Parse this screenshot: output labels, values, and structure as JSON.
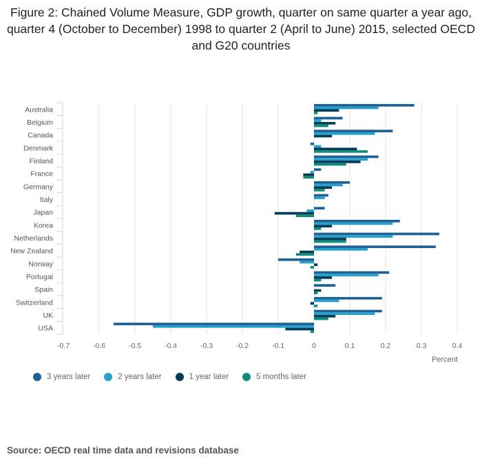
{
  "chart_data": {
    "type": "bar",
    "orientation": "horizontal",
    "title": "Figure 2: Chained Volume Measure, GDP growth, quarter on same quarter a year ago, quarter 4 (October to December) 1998 to quarter 2 (April to June) 2015, selected OECD and G20 countries",
    "xlabel": "Percent",
    "ylabel": "",
    "xlim": [
      -0.7,
      0.4
    ],
    "xticks": [
      -0.7,
      -0.6,
      -0.5,
      -0.4,
      -0.3,
      -0.2,
      -0.1,
      0,
      0.1,
      0.2,
      0.3,
      0.4
    ],
    "xtick_labels": [
      "-0.7",
      "-0.6",
      "-0.5",
      "-0.4",
      "-0.3",
      "-0.2",
      "-0.1",
      "0",
      "0.1",
      "0.2",
      "0.3",
      "0.4"
    ],
    "grid": true,
    "legend_position": "bottom-left",
    "categories": [
      "Australia",
      "Belgium",
      "Canada",
      "Denmark",
      "Finland",
      "France",
      "Germany",
      "Italy",
      "Japan",
      "Korea",
      "Netherlands",
      "New Zealand",
      "Norway",
      "Portugal",
      "Spain",
      "Switzerland",
      "UK",
      "USA"
    ],
    "series": [
      {
        "name": "3 years later",
        "color": "#206095",
        "values": [
          0.28,
          0.08,
          0.22,
          -0.01,
          0.18,
          0.02,
          0.1,
          0.04,
          0.03,
          0.24,
          0.35,
          0.34,
          -0.1,
          0.21,
          0.06,
          0.19,
          0.19,
          -0.56
        ]
      },
      {
        "name": "2 years later",
        "color": "#27a0cc",
        "values": [
          0.18,
          0.02,
          0.17,
          0.02,
          0.15,
          -0.01,
          0.08,
          0.03,
          -0.02,
          0.22,
          0.22,
          0.15,
          -0.04,
          0.18,
          0,
          0.07,
          0.17,
          -0.45
        ]
      },
      {
        "name": "1 year later",
        "color": "#003c57",
        "values": [
          0.07,
          0.06,
          0.05,
          0.12,
          0.13,
          -0.03,
          0.05,
          0,
          -0.11,
          0.05,
          0.09,
          -0.04,
          0.01,
          0.05,
          0.02,
          -0.01,
          0.06,
          -0.08
        ]
      },
      {
        "name": "5 months later",
        "color": "#118c7b",
        "values": [
          0.01,
          0.04,
          0,
          0.15,
          0.09,
          -0.03,
          0.03,
          0,
          -0.05,
          0.02,
          0.09,
          -0.05,
          -0.01,
          0.02,
          0.01,
          0.01,
          0.04,
          -0.01
        ]
      }
    ],
    "source": "Source: OECD real time data and revisions database"
  }
}
